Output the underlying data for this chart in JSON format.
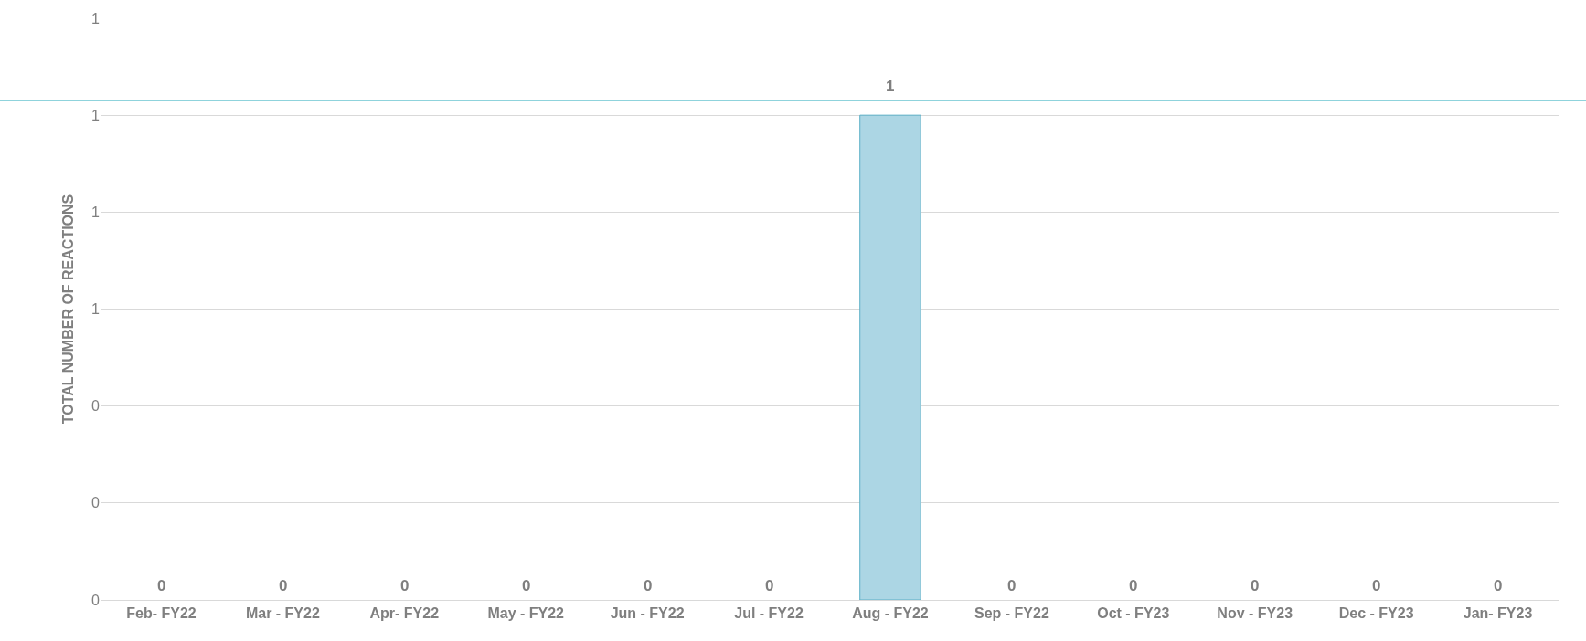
{
  "chart_data": {
    "type": "bar",
    "ylabel": "TOTAL NUMBER OF REACTIONS",
    "categories": [
      "Feb- FY22",
      "Mar - FY22",
      "Apr- FY22",
      "May - FY22",
      "Jun - FY22",
      "Jul - FY22",
      "Aug - FY22",
      "Sep - FY22",
      "Oct - FY23",
      "Nov - FY23",
      "Dec - FY23",
      "Jan- FY23"
    ],
    "values": [
      0,
      0,
      0,
      0,
      0,
      0,
      1,
      0,
      0,
      0,
      0,
      0
    ],
    "color": "#acd6e4",
    "ylim": [
      0,
      1.2
    ],
    "yticks": [
      {
        "value": 0,
        "label": "0"
      },
      {
        "value": 0.2,
        "label": "0"
      },
      {
        "value": 0.4,
        "label": "0"
      },
      {
        "value": 0.6,
        "label": "1"
      },
      {
        "value": 0.8,
        "label": "1"
      },
      {
        "value": 1.0,
        "label": "1"
      },
      {
        "value": 1.2,
        "label": "1"
      }
    ],
    "ref_lines": [
      {
        "axis": "y",
        "value": 1.03,
        "color": "#8fd3dc"
      }
    ],
    "data_labels": true,
    "grid": "y",
    "legend": false
  }
}
